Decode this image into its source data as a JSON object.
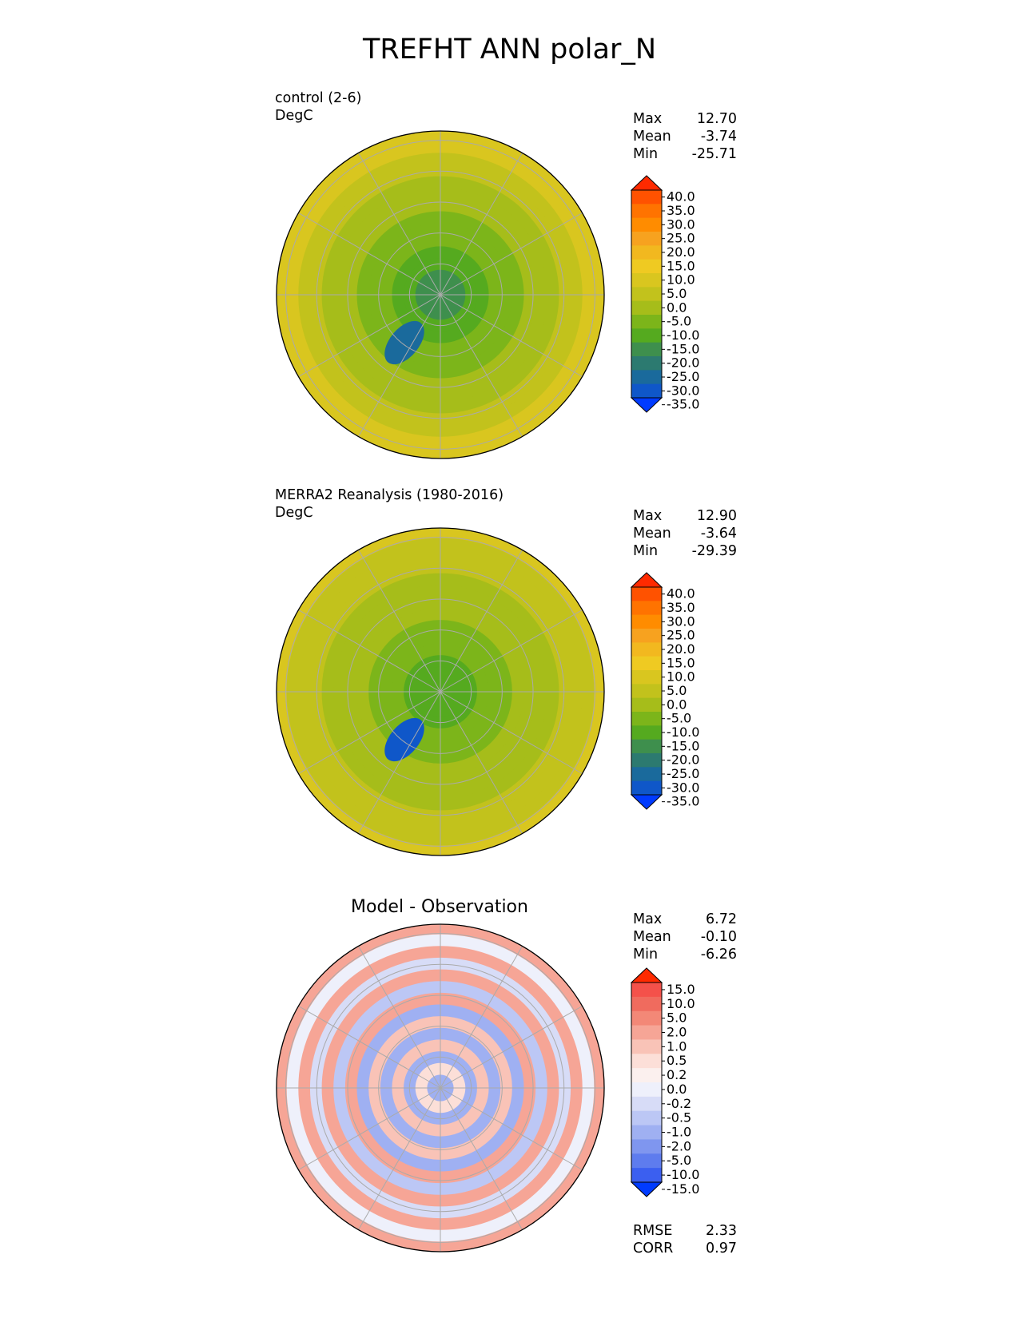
{
  "title": "TREFHT ANN polar_N",
  "chart_data": [
    {
      "type": "heatmap",
      "projection": "north polar stereographic",
      "name": "control (2-6)",
      "units": "DegC",
      "stats": {
        "max": "12.70",
        "mean": "-3.74",
        "min": "-25.71"
      },
      "colorbar": {
        "levels": [
          "40.0",
          "35.0",
          "30.0",
          "25.0",
          "20.0",
          "15.0",
          "10.0",
          "5.0",
          "0.0",
          "-5.0",
          "-10.0",
          "-15.0",
          "-20.0",
          "-25.0",
          "-30.0",
          "-35.0"
        ],
        "colors": [
          "#ff2a00",
          "#ff5200",
          "#ff7300",
          "#ff8c00",
          "#f7a21f",
          "#f2b81f",
          "#efca22",
          "#d9c61f",
          "#c2c21c",
          "#a6bd1a",
          "#7cb51a",
          "#55aa1f",
          "#3e8f4d",
          "#2c7a70",
          "#1a6a9c",
          "#0f57c9",
          "#003bff"
        ]
      },
      "field": {
        "pole_value": -20,
        "rim_value": 7,
        "cold_spot_value": -27
      }
    },
    {
      "type": "heatmap",
      "projection": "north polar stereographic",
      "name": "MERRA2 Reanalysis (1980-2016)",
      "units": "DegC",
      "stats": {
        "max": "12.90",
        "mean": "-3.64",
        "min": "-29.39"
      },
      "colorbar": {
        "levels": [
          "40.0",
          "35.0",
          "30.0",
          "25.0",
          "20.0",
          "15.0",
          "10.0",
          "5.0",
          "0.0",
          "-5.0",
          "-10.0",
          "-15.0",
          "-20.0",
          "-25.0",
          "-30.0",
          "-35.0"
        ],
        "colors": [
          "#ff2a00",
          "#ff5200",
          "#ff7300",
          "#ff8c00",
          "#f7a21f",
          "#f2b81f",
          "#efca22",
          "#d9c61f",
          "#c2c21c",
          "#a6bd1a",
          "#7cb51a",
          "#55aa1f",
          "#3e8f4d",
          "#2c7a70",
          "#1a6a9c",
          "#0f57c9",
          "#003bff"
        ]
      },
      "field": {
        "pole_value": -17,
        "rim_value": 6,
        "cold_spot_value": -30
      }
    },
    {
      "type": "heatmap",
      "projection": "north polar stereographic",
      "title": "Model - Observation",
      "stats": {
        "max": "6.72",
        "mean": "-0.10",
        "min": "-6.26"
      },
      "metrics": {
        "rmse": "2.33",
        "corr": "0.97"
      },
      "colorbar": {
        "levels": [
          "15.0",
          "10.0",
          "5.0",
          "2.0",
          "1.0",
          "0.5",
          "0.2",
          "0.0",
          "-0.2",
          "-0.5",
          "-1.0",
          "-2.0",
          "-5.0",
          "-10.0",
          "-15.0"
        ],
        "colors": [
          "#ff2a00",
          "#f4514a",
          "#f06b5e",
          "#f38877",
          "#f6a596",
          "#f9c3b7",
          "#fcdfd8",
          "#fbf0ee",
          "#eef0fb",
          "#d7dcf7",
          "#bcc7f5",
          "#9fb0f2",
          "#7f96ef",
          "#5e7cee",
          "#3b5ff0",
          "#003bff"
        ]
      },
      "field": {
        "pole_value": -2,
        "rim_value": 2
      }
    }
  ],
  "labels": {
    "max": "Max",
    "mean": "Mean",
    "min": "Min",
    "rmse": "RMSE",
    "corr": "CORR"
  }
}
